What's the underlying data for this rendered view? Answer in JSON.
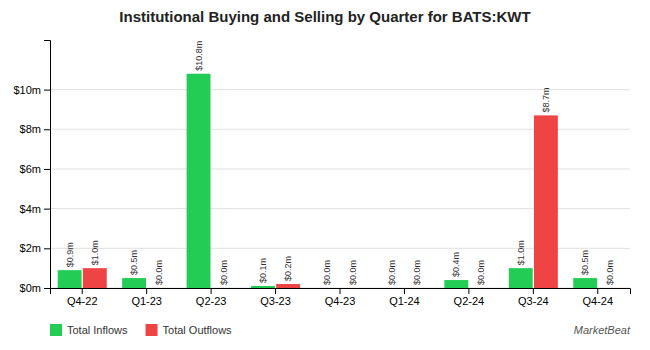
{
  "chart_data": {
    "type": "bar",
    "title": "Institutional Buying and Selling by Quarter for BATS:KWT",
    "categories": [
      "Q4-22",
      "Q1-23",
      "Q2-23",
      "Q3-23",
      "Q4-23",
      "Q1-24",
      "Q2-24",
      "Q3-24",
      "Q4-24"
    ],
    "series": [
      {
        "name": "Total Inflows",
        "color": "#22cc55",
        "values": [
          0.9,
          0.5,
          10.8,
          0.1,
          0.0,
          0.0,
          0.4,
          1.0,
          0.5
        ],
        "value_labels": [
          "$0.9m",
          "$0.5m",
          "$10.8m",
          "$0.1m",
          "$0.0m",
          "$0.0m",
          "$0.4m",
          "$1.0m",
          "$0.5m"
        ]
      },
      {
        "name": "Total Outflows",
        "color": "#ee4444",
        "values": [
          1.0,
          0.0,
          0.0,
          0.2,
          0.0,
          0.0,
          0.0,
          8.7,
          0.0
        ],
        "value_labels": [
          "$1.0m",
          "$0.0m",
          "$0.0m",
          "$0.2m",
          "$0.0m",
          "$0.0m",
          "$0.0m",
          "$8.7m",
          "$0.0m"
        ]
      }
    ],
    "ylim": [
      0,
      12.5
    ],
    "yticks": [
      {
        "value": 0,
        "label": "$0m"
      },
      {
        "value": 2,
        "label": "$2m"
      },
      {
        "value": 4,
        "label": "$4m"
      },
      {
        "value": 6,
        "label": "$6m"
      },
      {
        "value": 8,
        "label": "$8m"
      },
      {
        "value": 10,
        "label": "$10m"
      }
    ],
    "grid": true,
    "legend": "bottom",
    "data_labels": true,
    "annotations": [
      "MarketBeat"
    ]
  }
}
